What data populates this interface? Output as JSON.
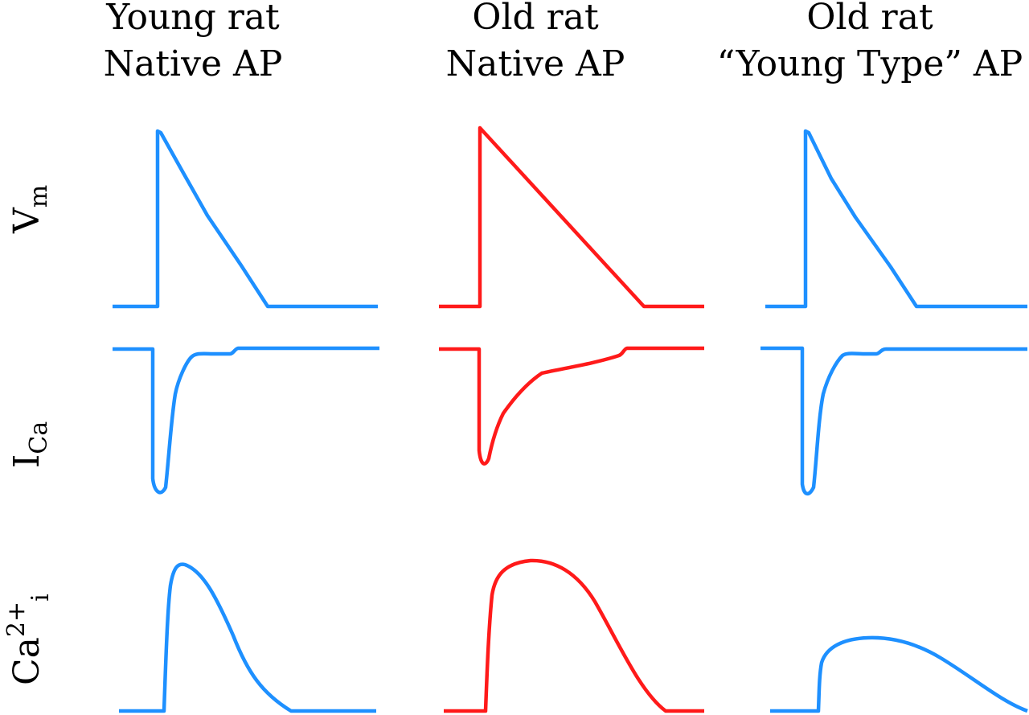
{
  "columns": [
    {
      "id": "young-native",
      "title_line1": "Young rat",
      "title_line2": "Native AP",
      "color": "#1E90FF"
    },
    {
      "id": "old-native",
      "title_line1": "Old rat",
      "title_line2": "Native AP",
      "color": "#FF1A1A"
    },
    {
      "id": "old-young-type",
      "title_line1": "Old rat",
      "title_line2": "“Young Type” AP",
      "color": "#1E90FF"
    }
  ],
  "rows": [
    {
      "id": "vm",
      "label_main": "V",
      "label_sub": "m"
    },
    {
      "id": "ica",
      "label_main": "I",
      "label_sub": "Ca"
    },
    {
      "id": "cai",
      "label_main": "Ca",
      "label_sup": "2+",
      "label_sub": "i"
    }
  ],
  "colors": {
    "young": "#1E90FF",
    "old": "#FF1A1A",
    "text": "#000000"
  }
}
